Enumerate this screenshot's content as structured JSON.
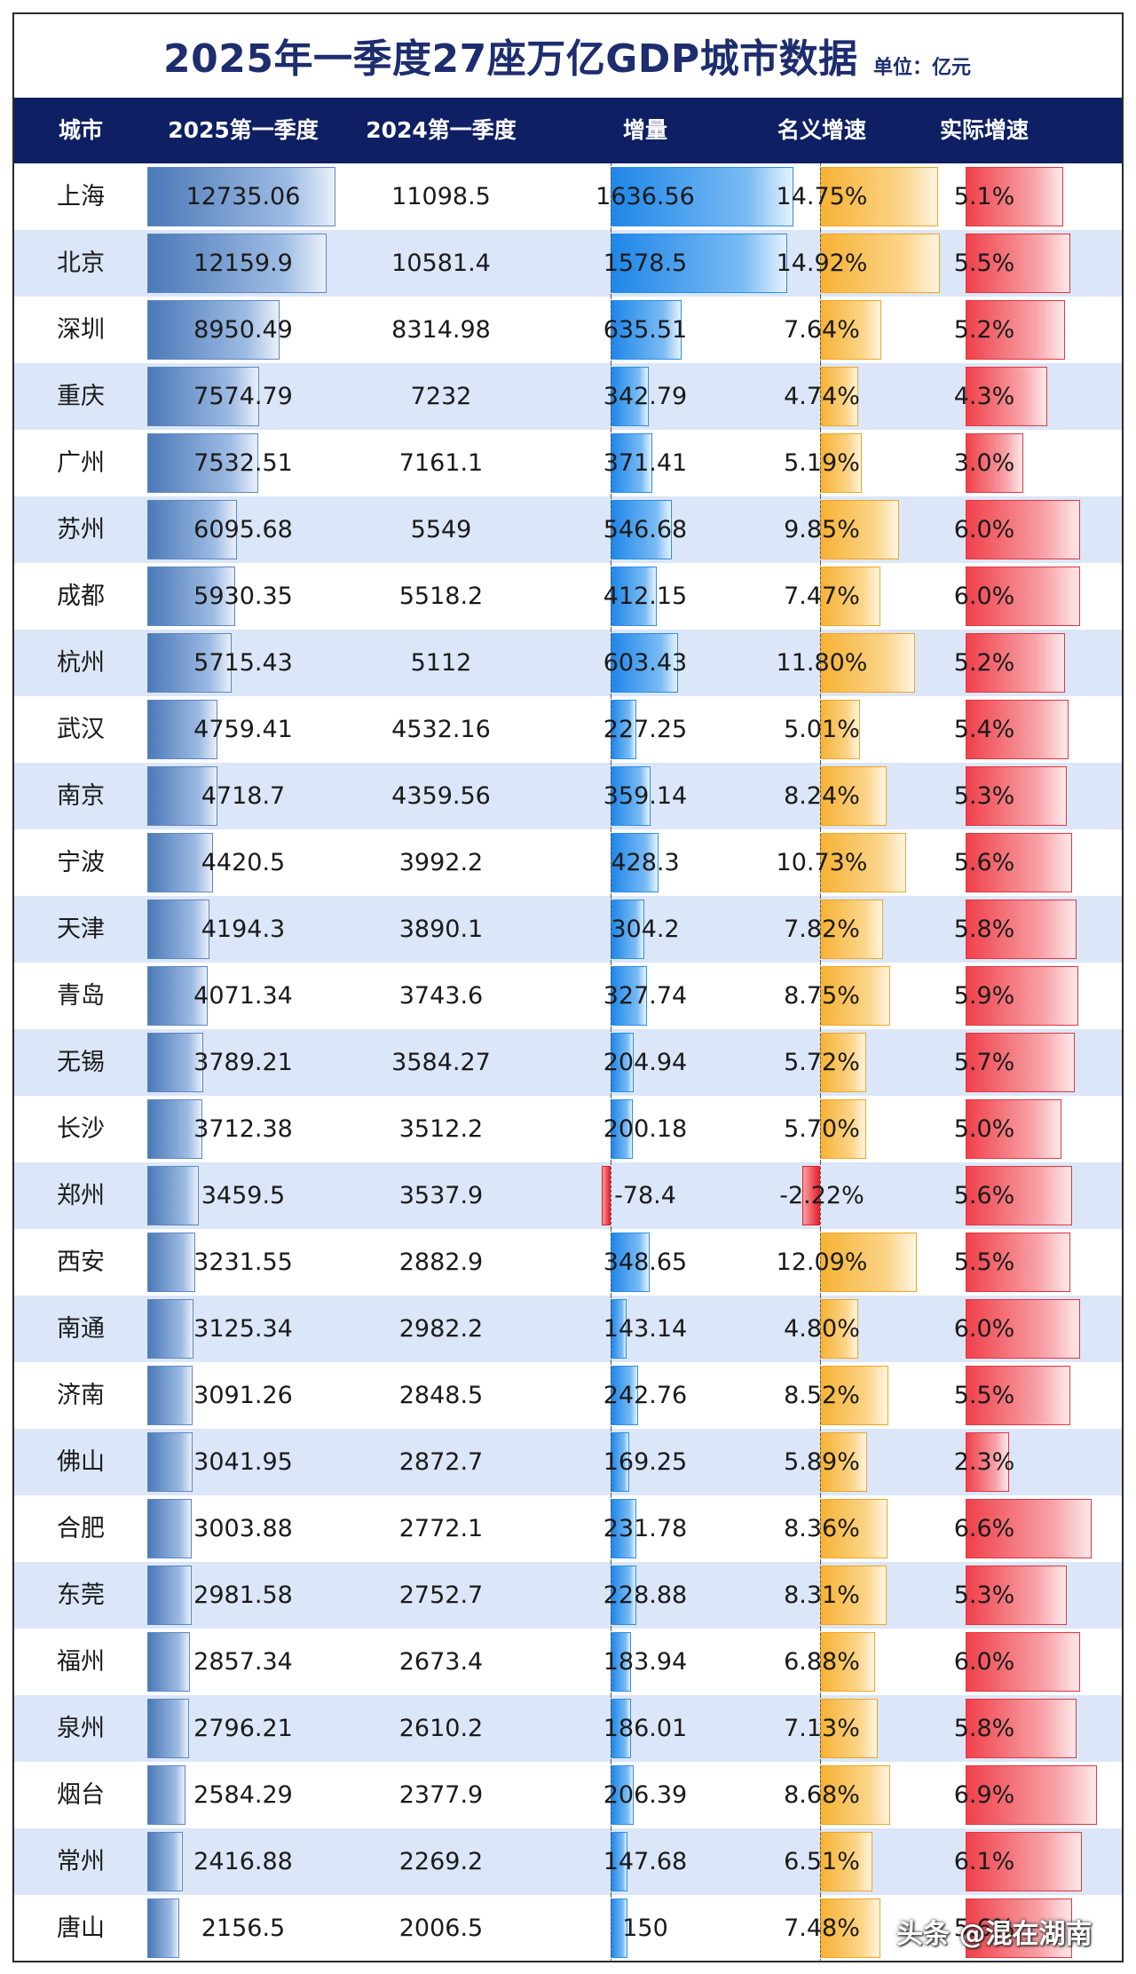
{
  "title": "2025年一季度27座万亿GDP城市数据",
  "unit": "单位：亿元",
  "headers": {
    "city": "城市",
    "gdp2025": "2025第一季度",
    "gdp2024": "2024第一季度",
    "increase": "增量",
    "nominal": "名义增速",
    "real": "实际增速"
  },
  "colors": {
    "header_bg": "#0f1f63",
    "title": "#1d2d6e",
    "alt_row": "#dbe6f8",
    "gdp_bar": "#4b79b8",
    "increase_bar": "#1f86e8",
    "nominal_bar": "#f7b235",
    "real_bar": "#f0414b",
    "negative": "#e8202a"
  },
  "rows": [
    {
      "city": "上海",
      "gdp2025": "12735.06",
      "gdp2024": "11098.5",
      "increase": "1636.56",
      "nominal": "14.75%",
      "real": "5.1%"
    },
    {
      "city": "北京",
      "gdp2025": "12159.9",
      "gdp2024": "10581.4",
      "increase": "1578.5",
      "nominal": "14.92%",
      "real": "5.5%"
    },
    {
      "city": "深圳",
      "gdp2025": "8950.49",
      "gdp2024": "8314.98",
      "increase": "635.51",
      "nominal": "7.64%",
      "real": "5.2%"
    },
    {
      "city": "重庆",
      "gdp2025": "7574.79",
      "gdp2024": "7232",
      "increase": "342.79",
      "nominal": "4.74%",
      "real": "4.3%"
    },
    {
      "city": "广州",
      "gdp2025": "7532.51",
      "gdp2024": "7161.1",
      "increase": "371.41",
      "nominal": "5.19%",
      "real": "3.0%"
    },
    {
      "city": "苏州",
      "gdp2025": "6095.68",
      "gdp2024": "5549",
      "increase": "546.68",
      "nominal": "9.85%",
      "real": "6.0%"
    },
    {
      "city": "成都",
      "gdp2025": "5930.35",
      "gdp2024": "5518.2",
      "increase": "412.15",
      "nominal": "7.47%",
      "real": "6.0%"
    },
    {
      "city": "杭州",
      "gdp2025": "5715.43",
      "gdp2024": "5112",
      "increase": "603.43",
      "nominal": "11.80%",
      "real": "5.2%"
    },
    {
      "city": "武汉",
      "gdp2025": "4759.41",
      "gdp2024": "4532.16",
      "increase": "227.25",
      "nominal": "5.01%",
      "real": "5.4%"
    },
    {
      "city": "南京",
      "gdp2025": "4718.7",
      "gdp2024": "4359.56",
      "increase": "359.14",
      "nominal": "8.24%",
      "real": "5.3%"
    },
    {
      "city": "宁波",
      "gdp2025": "4420.5",
      "gdp2024": "3992.2",
      "increase": "428.3",
      "nominal": "10.73%",
      "real": "5.6%"
    },
    {
      "city": "天津",
      "gdp2025": "4194.3",
      "gdp2024": "3890.1",
      "increase": "304.2",
      "nominal": "7.82%",
      "real": "5.8%"
    },
    {
      "city": "青岛",
      "gdp2025": "4071.34",
      "gdp2024": "3743.6",
      "increase": "327.74",
      "nominal": "8.75%",
      "real": "5.9%"
    },
    {
      "city": "无锡",
      "gdp2025": "3789.21",
      "gdp2024": "3584.27",
      "increase": "204.94",
      "nominal": "5.72%",
      "real": "5.7%"
    },
    {
      "city": "长沙",
      "gdp2025": "3712.38",
      "gdp2024": "3512.2",
      "increase": "200.18",
      "nominal": "5.70%",
      "real": "5.0%"
    },
    {
      "city": "郑州",
      "gdp2025": "3459.5",
      "gdp2024": "3537.9",
      "increase": "-78.4",
      "nominal": "-2.22%",
      "real": "5.6%"
    },
    {
      "city": "西安",
      "gdp2025": "3231.55",
      "gdp2024": "2882.9",
      "increase": "348.65",
      "nominal": "12.09%",
      "real": "5.5%"
    },
    {
      "city": "南通",
      "gdp2025": "3125.34",
      "gdp2024": "2982.2",
      "increase": "143.14",
      "nominal": "4.80%",
      "real": "6.0%"
    },
    {
      "city": "济南",
      "gdp2025": "3091.26",
      "gdp2024": "2848.5",
      "increase": "242.76",
      "nominal": "8.52%",
      "real": "5.5%"
    },
    {
      "city": "佛山",
      "gdp2025": "3041.95",
      "gdp2024": "2872.7",
      "increase": "169.25",
      "nominal": "5.89%",
      "real": "2.3%"
    },
    {
      "city": "合肥",
      "gdp2025": "3003.88",
      "gdp2024": "2772.1",
      "increase": "231.78",
      "nominal": "8.36%",
      "real": "6.6%"
    },
    {
      "city": "东莞",
      "gdp2025": "2981.58",
      "gdp2024": "2752.7",
      "increase": "228.88",
      "nominal": "8.31%",
      "real": "5.3%"
    },
    {
      "city": "福州",
      "gdp2025": "2857.34",
      "gdp2024": "2673.4",
      "increase": "183.94",
      "nominal": "6.88%",
      "real": "6.0%"
    },
    {
      "city": "泉州",
      "gdp2025": "2796.21",
      "gdp2024": "2610.2",
      "increase": "186.01",
      "nominal": "7.13%",
      "real": "5.8%"
    },
    {
      "city": "烟台",
      "gdp2025": "2584.29",
      "gdp2024": "2377.9",
      "increase": "206.39",
      "nominal": "8.68%",
      "real": "6.9%"
    },
    {
      "city": "常州",
      "gdp2025": "2416.88",
      "gdp2024": "2269.2",
      "increase": "147.68",
      "nominal": "6.51%",
      "real": "6.1%"
    },
    {
      "city": "唐山",
      "gdp2025": "2156.5",
      "gdp2024": "2006.5",
      "increase": "150",
      "nominal": "7.48%",
      "real": "5.6%"
    }
  ],
  "watermark": "头条 @混在湖南"
}
